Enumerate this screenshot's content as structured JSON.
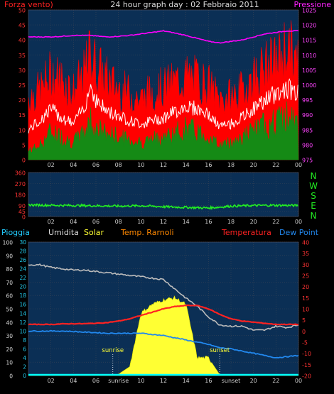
{
  "header": {
    "left_label": "Forza vento)",
    "title": "24 hour graph day : 02 Febbraio 2011",
    "right_label": "Pressione"
  },
  "colors": {
    "panel_bg": "#0b2f55",
    "grid": "#3b4656",
    "wind_gust": "#ff0000",
    "wind_avg": "#ffffff",
    "wind_speed": "#158a15",
    "pressure": "#ff00ff",
    "direction": "#22ee22",
    "humidity": "#bbbbbb",
    "solar": "#ffff33",
    "temp_rarnoli": "#ff7700",
    "temperature": "#ff2222",
    "dew_point": "#2288ee",
    "rain": "#00ffff"
  },
  "chart_data": [
    {
      "id": "wind_pressure",
      "type": "line",
      "title": "24 hour graph day : 02 Febbraio 2011",
      "xlabel": "",
      "x_tick_labels": [
        "02",
        "04",
        "06",
        "08",
        "10",
        "12",
        "14",
        "16",
        "18",
        "20",
        "22",
        "00"
      ],
      "y_left": {
        "label": "Forza vento)",
        "range": [
          0,
          50
        ],
        "ticks": [
          0,
          5,
          10,
          15,
          20,
          25,
          30,
          35,
          40,
          45,
          50
        ]
      },
      "y_right": {
        "label": "Pressione",
        "range": [
          975,
          1025
        ],
        "ticks": [
          975,
          980,
          985,
          990,
          995,
          1000,
          1005,
          1010,
          1015,
          1020,
          1025
        ]
      },
      "x_hours": [
        0,
        1,
        2,
        3,
        4,
        5,
        5.5,
        6,
        7,
        8,
        9,
        10,
        11,
        12,
        13,
        14,
        15,
        16,
        17,
        18,
        19,
        20,
        21,
        22,
        23,
        24
      ],
      "series": [
        {
          "name": "Pressione",
          "axis": "right",
          "values": [
            1016,
            1016,
            1016,
            1016.2,
            1016.5,
            1016.5,
            1016.5,
            1016.3,
            1016,
            1016.2,
            1016.5,
            1017,
            1017.5,
            1018,
            1017.3,
            1016.5,
            1015.5,
            1014.5,
            1014,
            1014.5,
            1015,
            1016,
            1017,
            1017.5,
            1018,
            1018
          ]
        },
        {
          "axis": "left",
          "values": [
            22,
            24,
            30,
            28,
            24,
            30,
            38,
            33,
            28,
            25,
            23,
            21,
            24,
            25,
            27,
            29,
            28,
            26,
            21,
            22,
            24,
            29,
            32,
            34,
            40,
            33
          ]
        },
        {
          "axis": "left",
          "values": [
            10,
            13,
            17,
            14,
            12,
            18,
            25,
            20,
            16,
            15,
            13,
            12,
            13,
            14,
            16,
            18,
            17,
            15,
            11,
            12,
            14,
            17,
            20,
            22,
            24,
            22
          ]
        },
        {
          "axis": "left",
          "values": [
            3,
            5,
            10,
            8,
            6,
            10,
            14,
            11,
            9,
            8,
            7,
            6,
            7,
            8,
            9,
            11,
            10,
            8,
            5,
            6,
            8,
            10,
            12,
            13,
            15,
            12
          ]
        }
      ]
    },
    {
      "id": "wind_direction",
      "type": "line",
      "x_tick_labels": [
        "02",
        "04",
        "06",
        "08",
        "10",
        "12",
        "14",
        "16",
        "18",
        "20",
        "22",
        "00"
      ],
      "y_left": {
        "range": [
          0,
          360
        ],
        "ticks": [
          0,
          45,
          90,
          180,
          270,
          360
        ]
      },
      "right_labels": [
        "N",
        "W",
        "S",
        "E",
        "N"
      ],
      "x_hours": [
        0,
        2,
        4,
        6,
        8,
        10,
        12,
        14,
        16,
        18,
        20,
        22,
        24
      ],
      "series": [
        {
          "values": [
            95,
            92,
            90,
            88,
            85,
            88,
            80,
            75,
            70,
            85,
            90,
            92,
            90
          ]
        }
      ]
    },
    {
      "id": "temperature_humidity",
      "type": "line",
      "x_tick_labels": [
        "02",
        "04",
        "06",
        "sunrise",
        "10",
        "12",
        "14",
        "16",
        "sunset",
        "20",
        "22",
        "00"
      ],
      "legend": [
        "Pioggia",
        "Umidita",
        "Solar",
        "Temp. Rarnoli",
        "Temperatura",
        "Dew Point"
      ],
      "y_left_outer": {
        "range": [
          0,
          100
        ],
        "ticks": [
          0,
          10,
          20,
          30,
          40,
          50,
          60,
          70,
          80,
          90,
          100
        ]
      },
      "y_left_inner": {
        "range": [
          0,
          30
        ],
        "ticks": [
          0,
          2,
          4,
          6,
          8,
          10,
          12,
          14,
          16,
          18,
          20,
          22,
          24,
          26,
          28,
          30
        ]
      },
      "y_right": {
        "range": [
          -20,
          40
        ],
        "ticks": [
          -20,
          -15,
          -10,
          -5,
          0,
          5,
          10,
          15,
          20,
          25,
          30,
          35,
          40
        ]
      },
      "annotations": {
        "sunrise": "sunrise",
        "sunset": "sunset",
        "sunrise_hour": 7.5,
        "sunset_hour": 17
      },
      "x_hours": [
        0,
        1,
        2,
        3,
        4,
        5,
        6,
        7,
        8,
        9,
        10,
        11,
        12,
        13,
        14,
        15,
        16,
        17,
        18,
        19,
        20,
        21,
        22,
        23,
        24
      ],
      "series": [
        {
          "name": "Umidita",
          "axis": "left_outer",
          "values": [
            83,
            83,
            81,
            80,
            79,
            79,
            78,
            77,
            76,
            75,
            74,
            73,
            72,
            65,
            58,
            52,
            44,
            38,
            37,
            37,
            34,
            34,
            37,
            36,
            38
          ]
        },
        {
          "name": "Temperatura",
          "axis": "right",
          "values": [
            3,
            3,
            3,
            3.2,
            3.3,
            3.3,
            3.5,
            3.8,
            4.5,
            5.5,
            7,
            8.5,
            10,
            11,
            11.5,
            11.5,
            10,
            7.5,
            5.5,
            4.5,
            4,
            3.5,
            3,
            3,
            3
          ]
        },
        {
          "name": "Dew Point",
          "axis": "right",
          "values": [
            0,
            0,
            0,
            0,
            -0.2,
            -0.5,
            -0.7,
            -1,
            -1,
            -1,
            -1,
            -1.5,
            -2,
            -3,
            -4,
            -5,
            -6,
            -7.5,
            -8,
            -9,
            -10,
            -11,
            -12,
            -11.5,
            -11
          ]
        },
        {
          "name": "Solar",
          "axis": "left_inner",
          "values": [
            0,
            0,
            0,
            0,
            0,
            0,
            0,
            0,
            0.3,
            2,
            14,
            16,
            17,
            17.5,
            16,
            4,
            4,
            0.2,
            0,
            0,
            0,
            0,
            0,
            0,
            0
          ]
        },
        {
          "name": "Pioggia",
          "axis": "left_outer",
          "values": [
            0,
            0,
            0,
            0,
            0,
            0,
            0,
            0,
            0,
            0,
            0,
            0,
            0,
            0,
            0,
            0,
            0,
            0,
            0,
            0,
            0,
            0,
            0,
            0,
            0
          ]
        }
      ]
    }
  ]
}
